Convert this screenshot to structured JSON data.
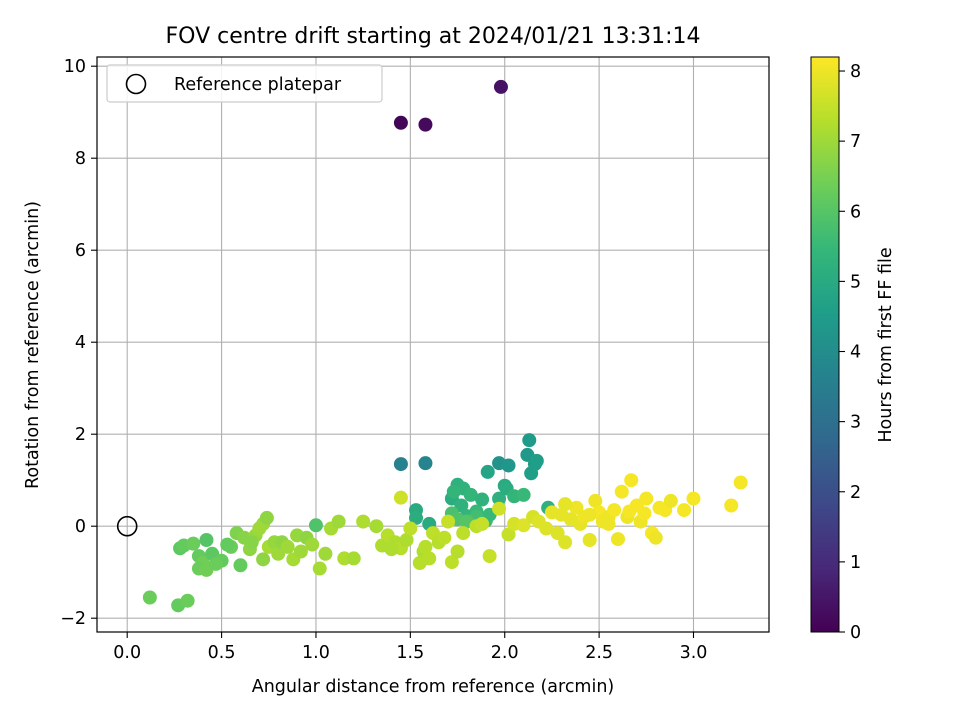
{
  "chart_data": {
    "type": "scatter",
    "title": "FOV centre drift starting at 2024/01/21 13:31:14",
    "xlabel": "Angular distance from reference (arcmin)",
    "ylabel": "Rotation from reference (arcmin)",
    "xlim": [
      -0.16,
      3.4
    ],
    "ylim": [
      -2.3,
      10.2
    ],
    "x_ticks": [
      0.0,
      0.5,
      1.0,
      1.5,
      2.0,
      2.5,
      3.0
    ],
    "x_tick_labels": [
      "0.0",
      "0.5",
      "1.0",
      "1.5",
      "2.0",
      "2.5",
      "3.0"
    ],
    "y_ticks": [
      -2,
      0,
      2,
      4,
      6,
      8,
      10
    ],
    "y_tick_labels": [
      "−2",
      "0",
      "2",
      "4",
      "6",
      "8",
      "10"
    ],
    "grid": true,
    "legend": {
      "position": "top-left",
      "label": "Reference platepar"
    },
    "reference_point": {
      "x": 0,
      "y": 0
    },
    "colorbar": {
      "label": "Hours from first FF file",
      "colormap": "viridis",
      "range": [
        0,
        8.2
      ],
      "ticks": [
        0,
        1,
        2,
        3,
        4,
        5,
        6,
        7,
        8
      ],
      "tick_labels": [
        "0",
        "1",
        "2",
        "3",
        "4",
        "5",
        "6",
        "7",
        "8"
      ],
      "stops": [
        "#440154",
        "#482878",
        "#3e4989",
        "#31688e",
        "#26828e",
        "#1f9e89",
        "#35b779",
        "#6ece58",
        "#b5de2b",
        "#fde725"
      ]
    },
    "points": [
      [
        1.45,
        8.77,
        0.1
      ],
      [
        1.58,
        8.73,
        0.2
      ],
      [
        1.98,
        9.55,
        0.4
      ],
      [
        1.45,
        1.35,
        3.6
      ],
      [
        1.58,
        1.37,
        3.7
      ],
      [
        1.97,
        1.37,
        4.2
      ],
      [
        2.02,
        1.32,
        4.3
      ],
      [
        2.12,
        1.55,
        4.4
      ],
      [
        2.13,
        1.87,
        4.5
      ],
      [
        2.16,
        1.35,
        4.5
      ],
      [
        2.14,
        1.15,
        4.6
      ],
      [
        2.17,
        1.42,
        4.6
      ],
      [
        1.91,
        1.18,
        4.8
      ],
      [
        1.53,
        0.35,
        5.0
      ],
      [
        1.53,
        0.18,
        5.1
      ],
      [
        1.6,
        0.05,
        5.0
      ],
      [
        1.72,
        0.6,
        5.1
      ],
      [
        1.75,
        0.9,
        5.2
      ],
      [
        1.78,
        0.82,
        5.3
      ],
      [
        1.77,
        0.45,
        5.3
      ],
      [
        1.82,
        0.68,
        5.4
      ],
      [
        1.8,
        0.22,
        5.4
      ],
      [
        1.85,
        0.32,
        5.5
      ],
      [
        1.88,
        0.58,
        5.3
      ],
      [
        1.9,
        0.12,
        5.6
      ],
      [
        1.92,
        0.25,
        5.5
      ],
      [
        1.97,
        0.6,
        5.2
      ],
      [
        2.0,
        0.88,
        5.0
      ],
      [
        2.01,
        0.82,
        5.1
      ],
      [
        2.05,
        0.65,
        5.4
      ],
      [
        2.1,
        0.68,
        5.5
      ],
      [
        2.23,
        0.4,
        5.2
      ],
      [
        1.73,
        0.75,
        5.4
      ],
      [
        1.85,
        0.2,
        5.7
      ],
      [
        0.12,
        -1.55,
        6.3
      ],
      [
        0.27,
        -1.72,
        6.2
      ],
      [
        0.32,
        -1.62,
        6.3
      ],
      [
        0.28,
        -0.48,
        6.1
      ],
      [
        0.3,
        -0.42,
        6.2
      ],
      [
        0.35,
        -0.38,
        6.3
      ],
      [
        0.38,
        -0.65,
        6.2
      ],
      [
        0.42,
        -0.3,
        6.0
      ],
      [
        0.4,
        -0.8,
        6.4
      ],
      [
        0.45,
        -0.6,
        6.1
      ],
      [
        0.5,
        -0.75,
        6.2
      ],
      [
        0.55,
        -0.45,
        6.3
      ],
      [
        0.6,
        -0.85,
        6.2
      ],
      [
        1.0,
        0.02,
        5.9
      ],
      [
        0.38,
        -0.92,
        6.3
      ],
      [
        0.42,
        -0.95,
        6.4
      ],
      [
        0.53,
        -0.4,
        6.2
      ],
      [
        0.47,
        -0.82,
        6.3
      ],
      [
        1.72,
        0.28,
        5.8
      ],
      [
        1.75,
        0.15,
        5.9
      ],
      [
        1.8,
        0.1,
        6.0
      ],
      [
        0.58,
        -0.15,
        6.6
      ],
      [
        0.62,
        -0.25,
        6.7
      ],
      [
        0.65,
        -0.5,
        6.8
      ],
      [
        0.68,
        -0.2,
        6.9
      ],
      [
        0.7,
        -0.05,
        7.0
      ],
      [
        0.72,
        0.05,
        7.0
      ],
      [
        0.74,
        0.18,
        6.8
      ],
      [
        0.75,
        -0.45,
        7.1
      ],
      [
        0.78,
        -0.35,
        6.9
      ],
      [
        0.8,
        -0.6,
        7.0
      ],
      [
        0.82,
        -0.35,
        6.8
      ],
      [
        0.85,
        -0.45,
        7.0
      ],
      [
        0.88,
        -0.72,
        7.1
      ],
      [
        0.9,
        -0.2,
        6.9
      ],
      [
        0.92,
        -0.55,
        7.0
      ],
      [
        0.95,
        -0.25,
        6.8
      ],
      [
        0.98,
        -0.4,
        7.0
      ],
      [
        1.02,
        -0.92,
        7.1
      ],
      [
        1.05,
        -0.6,
        7.0
      ],
      [
        1.08,
        -0.05,
        7.1
      ],
      [
        1.12,
        0.1,
        7.0
      ],
      [
        1.15,
        -0.7,
        7.2
      ],
      [
        1.2,
        -0.7,
        7.1
      ],
      [
        1.25,
        0.1,
        7.2
      ],
      [
        1.32,
        0.0,
        7.1
      ],
      [
        1.35,
        -0.42,
        7.2
      ],
      [
        1.38,
        -0.2,
        7.3
      ],
      [
        1.42,
        -0.35,
        7.2
      ],
      [
        1.45,
        -0.48,
        7.3
      ],
      [
        1.48,
        -0.3,
        7.2
      ],
      [
        1.5,
        -0.05,
        7.4
      ],
      [
        1.55,
        -0.8,
        7.3
      ],
      [
        1.57,
        -0.55,
        7.2
      ],
      [
        1.6,
        -0.7,
        7.3
      ],
      [
        1.62,
        -0.15,
        7.4
      ],
      [
        1.65,
        -0.35,
        7.3
      ],
      [
        1.68,
        -0.25,
        7.4
      ],
      [
        1.7,
        0.1,
        7.5
      ],
      [
        1.72,
        -0.78,
        7.4
      ],
      [
        1.75,
        -0.55,
        7.3
      ],
      [
        1.78,
        -0.15,
        7.4
      ],
      [
        1.85,
        0.0,
        7.4
      ],
      [
        1.88,
        0.05,
        7.5
      ],
      [
        1.92,
        -0.65,
        7.5
      ],
      [
        1.45,
        0.62,
        7.6
      ],
      [
        1.97,
        0.38,
        7.6
      ],
      [
        2.02,
        -0.18,
        7.5
      ],
      [
        0.66,
        -0.35,
        6.7
      ],
      [
        0.72,
        -0.72,
        6.8
      ],
      [
        1.4,
        -0.5,
        7.2
      ],
      [
        1.58,
        -0.45,
        7.3
      ],
      [
        2.05,
        0.05,
        7.7
      ],
      [
        2.1,
        0.02,
        7.8
      ],
      [
        2.15,
        0.2,
        7.7
      ],
      [
        2.18,
        0.1,
        7.8
      ],
      [
        2.22,
        -0.05,
        7.8
      ],
      [
        2.25,
        0.3,
        7.9
      ],
      [
        2.28,
        -0.15,
        7.8
      ],
      [
        2.3,
        0.25,
        7.9
      ],
      [
        2.32,
        -0.35,
        7.8
      ],
      [
        2.35,
        0.15,
        7.9
      ],
      [
        2.38,
        0.4,
        8.0
      ],
      [
        2.4,
        0.05,
        7.9
      ],
      [
        2.42,
        0.2,
        8.0
      ],
      [
        2.45,
        -0.3,
        7.9
      ],
      [
        2.48,
        0.55,
        8.0
      ],
      [
        2.5,
        0.3,
        8.1
      ],
      [
        2.52,
        0.1,
        8.0
      ],
      [
        2.55,
        0.2,
        8.0
      ],
      [
        2.58,
        0.35,
        8.1
      ],
      [
        2.6,
        -0.28,
        8.0
      ],
      [
        2.62,
        0.75,
        8.1
      ],
      [
        2.65,
        0.2,
        8.0
      ],
      [
        2.67,
        1.0,
        8.1
      ],
      [
        2.7,
        0.45,
        8.1
      ],
      [
        2.72,
        0.1,
        8.0
      ],
      [
        2.75,
        0.6,
        8.1
      ],
      [
        2.78,
        -0.15,
        8.1
      ],
      [
        2.8,
        -0.25,
        8.0
      ],
      [
        2.82,
        0.4,
        8.1
      ],
      [
        2.85,
        0.35,
        8.1
      ],
      [
        2.88,
        0.55,
        8.0
      ],
      [
        2.95,
        0.35,
        8.1
      ],
      [
        3.0,
        0.6,
        8.1
      ],
      [
        3.2,
        0.45,
        8.1
      ],
      [
        3.25,
        0.95,
        8.1
      ],
      [
        2.32,
        0.48,
        7.9
      ],
      [
        2.45,
        0.25,
        8.0
      ],
      [
        2.55,
        0.05,
        8.0
      ],
      [
        2.66,
        0.32,
        8.1
      ],
      [
        2.74,
        0.28,
        8.1
      ]
    ]
  }
}
